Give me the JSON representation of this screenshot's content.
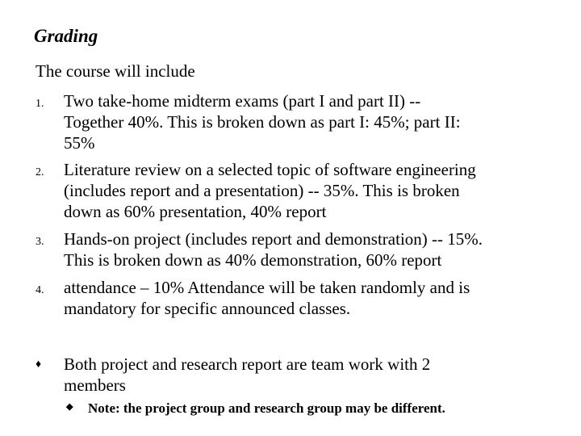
{
  "title": "Grading",
  "intro": "The course will include",
  "items": [
    {
      "num": "1.",
      "lines": [
        "Two take-home midterm exams (part I and part II)  --",
        "Together 40%. This is broken down as part I: 45%; part II:",
        "55%"
      ]
    },
    {
      "num": "2.",
      "lines": [
        "Literature review on a selected topic of software engineering",
        "(includes report and a presentation) -- 35%. This is broken",
        "down as 60% presentation, 40% report"
      ]
    },
    {
      "num": "3.",
      "lines": [
        "Hands-on project (includes report and demonstration) -- 15%.",
        "This is broken down as 40% demonstration, 60% report"
      ]
    },
    {
      "num": "4.",
      "lines": [
        "attendance – 10%  Attendance will be taken randomly and is",
        "mandatory for specific announced classes."
      ]
    }
  ],
  "bullet": {
    "icon": "diamond-bullet-icon",
    "lines": [
      "Both project and research report are team work with 2",
      "members"
    ]
  },
  "note": {
    "icon": "diamond-bullet-icon",
    "text": "Note: the project group and research group may be different."
  }
}
